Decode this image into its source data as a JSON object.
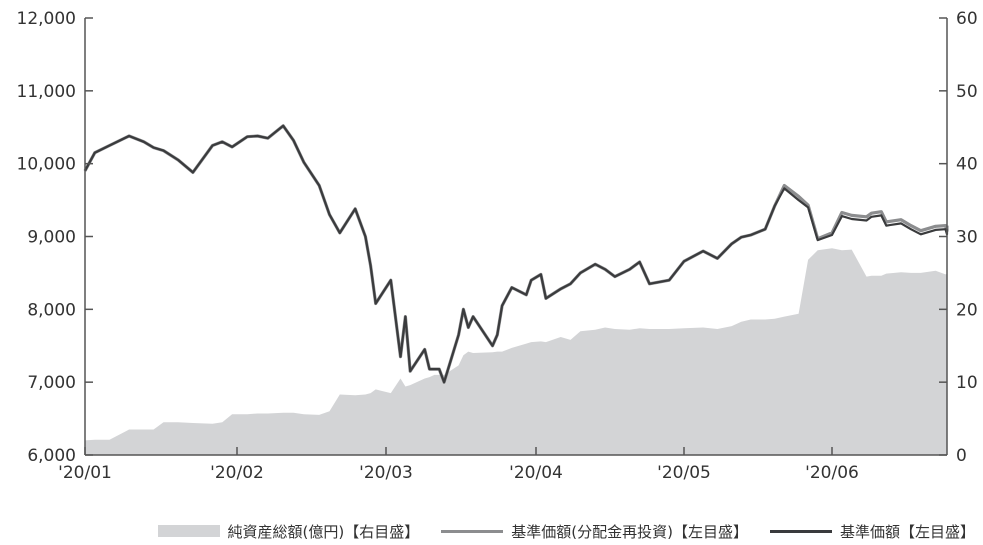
{
  "chart_data": {
    "type": "area",
    "x_tick_labels": [
      "'20/01",
      "'20/02",
      "'20/03",
      "'20/04",
      "'20/05",
      "'20/06"
    ],
    "y_left": {
      "min": 6000,
      "max": 12000,
      "step": 1000,
      "tick_labels": [
        "6,000",
        "7,000",
        "8,000",
        "9,000",
        "10,000",
        "11,000",
        "12,000"
      ]
    },
    "y_right": {
      "min": 0,
      "max": 60,
      "step": 10,
      "tick_labels": [
        "0",
        "10",
        "20",
        "30",
        "40",
        "50",
        "60"
      ]
    },
    "grid": false,
    "legend_position": "bottom",
    "x": [
      "2020-01-01",
      "2020-01-03",
      "2020-01-06",
      "2020-01-10",
      "2020-01-13",
      "2020-01-15",
      "2020-01-17",
      "2020-01-20",
      "2020-01-23",
      "2020-01-27",
      "2020-01-29",
      "2020-01-31",
      "2020-02-03",
      "2020-02-05",
      "2020-02-07",
      "2020-02-10",
      "2020-02-12",
      "2020-02-14",
      "2020-02-17",
      "2020-02-19",
      "2020-02-21",
      "2020-02-24",
      "2020-02-26",
      "2020-02-27",
      "2020-02-28",
      "2020-03-02",
      "2020-03-04",
      "2020-03-05",
      "2020-03-06",
      "2020-03-09",
      "2020-03-10",
      "2020-03-11",
      "2020-03-12",
      "2020-03-13",
      "2020-03-16",
      "2020-03-17",
      "2020-03-18",
      "2020-03-19",
      "2020-03-23",
      "2020-03-24",
      "2020-03-25",
      "2020-03-27",
      "2020-03-30",
      "2020-03-31",
      "2020-04-02",
      "2020-04-03",
      "2020-04-06",
      "2020-04-08",
      "2020-04-10",
      "2020-04-13",
      "2020-04-15",
      "2020-04-17",
      "2020-04-20",
      "2020-04-22",
      "2020-04-24",
      "2020-04-28",
      "2020-05-01",
      "2020-05-05",
      "2020-05-08",
      "2020-05-11",
      "2020-05-13",
      "2020-05-15",
      "2020-05-18",
      "2020-05-20",
      "2020-05-22",
      "2020-05-25",
      "2020-05-27",
      "2020-05-29",
      "2020-06-01",
      "2020-06-03",
      "2020-06-05",
      "2020-06-08",
      "2020-06-09",
      "2020-06-11",
      "2020-06-12",
      "2020-06-15",
      "2020-06-17",
      "2020-06-19",
      "2020-06-22",
      "2020-06-24",
      "2020-06-26",
      "2020-06-29",
      "2020-06-30"
    ],
    "series": [
      {
        "name": "純資産総額(億円)【右目盛】",
        "axis": "right",
        "color": "#d3d4d6",
        "values": [
          2.0,
          2.1,
          2.1,
          3.5,
          3.5,
          3.5,
          4.5,
          4.5,
          4.4,
          4.3,
          4.5,
          5.6,
          5.6,
          5.7,
          5.7,
          5.8,
          5.8,
          5.6,
          5.5,
          6.0,
          8.3,
          8.2,
          8.3,
          8.5,
          9.0,
          8.5,
          10.5,
          9.4,
          9.6,
          10.5,
          10.7,
          11.0,
          11.0,
          11.0,
          12.3,
          13.7,
          14.2,
          14.0,
          14.1,
          14.2,
          14.2,
          14.7,
          15.3,
          15.5,
          15.6,
          15.5,
          16.2,
          15.8,
          17.0,
          17.2,
          17.5,
          17.3,
          17.2,
          17.4,
          17.3,
          17.3,
          17.4,
          17.5,
          17.3,
          17.7,
          18.3,
          18.6,
          18.6,
          18.7,
          19.0,
          19.4,
          26.8,
          28.1,
          28.4,
          28.1,
          28.2,
          24.5,
          24.6,
          24.6,
          24.9,
          25.1,
          25.0,
          25.0,
          25.3,
          24.8,
          24.9,
          24.7,
          24.7
        ]
      },
      {
        "name": "基準価額(分配金再投資)【左目盛】",
        "axis": "left",
        "color": "#8c8d8f",
        "values": [
          9900,
          10150,
          10250,
          10380,
          10300,
          10220,
          10180,
          10050,
          9880,
          10250,
          10300,
          10230,
          10370,
          10380,
          10350,
          10520,
          10320,
          10020,
          9700,
          9300,
          9050,
          9380,
          9000,
          8600,
          8080,
          8400,
          7350,
          7900,
          7150,
          7450,
          7180,
          7180,
          7180,
          7000,
          7650,
          8000,
          7750,
          7900,
          7500,
          7650,
          8050,
          8300,
          8200,
          8400,
          8480,
          8150,
          8280,
          8350,
          8500,
          8620,
          8550,
          8450,
          8550,
          8650,
          8350,
          8400,
          8660,
          8800,
          8700,
          8900,
          8990,
          9020,
          9100,
          9420,
          9700,
          9550,
          9430,
          8970,
          9050,
          9330,
          9290,
          9270,
          9320,
          9340,
          9200,
          9230,
          9150,
          9080,
          9140,
          9150,
          9080,
          9080,
          9150
        ]
      },
      {
        "name": "基準価額【左目盛】",
        "axis": "left",
        "color": "#3a3b3d",
        "values": [
          9900,
          10150,
          10250,
          10380,
          10300,
          10220,
          10180,
          10050,
          9880,
          10250,
          10300,
          10230,
          10370,
          10380,
          10350,
          10520,
          10320,
          10020,
          9700,
          9300,
          9050,
          9380,
          9000,
          8600,
          8080,
          8400,
          7350,
          7900,
          7150,
          7450,
          7180,
          7180,
          7180,
          7000,
          7650,
          8000,
          7750,
          7900,
          7500,
          7650,
          8050,
          8300,
          8200,
          8400,
          8480,
          8150,
          8280,
          8350,
          8500,
          8620,
          8550,
          8450,
          8550,
          8650,
          8350,
          8400,
          8660,
          8800,
          8700,
          8900,
          8990,
          9020,
          9100,
          9420,
          9660,
          9500,
          9400,
          8950,
          9020,
          9280,
          9240,
          9220,
          9270,
          9290,
          9150,
          9180,
          9100,
          9030,
          9090,
          9100,
          9030,
          9030,
          9100
        ]
      }
    ]
  }
}
